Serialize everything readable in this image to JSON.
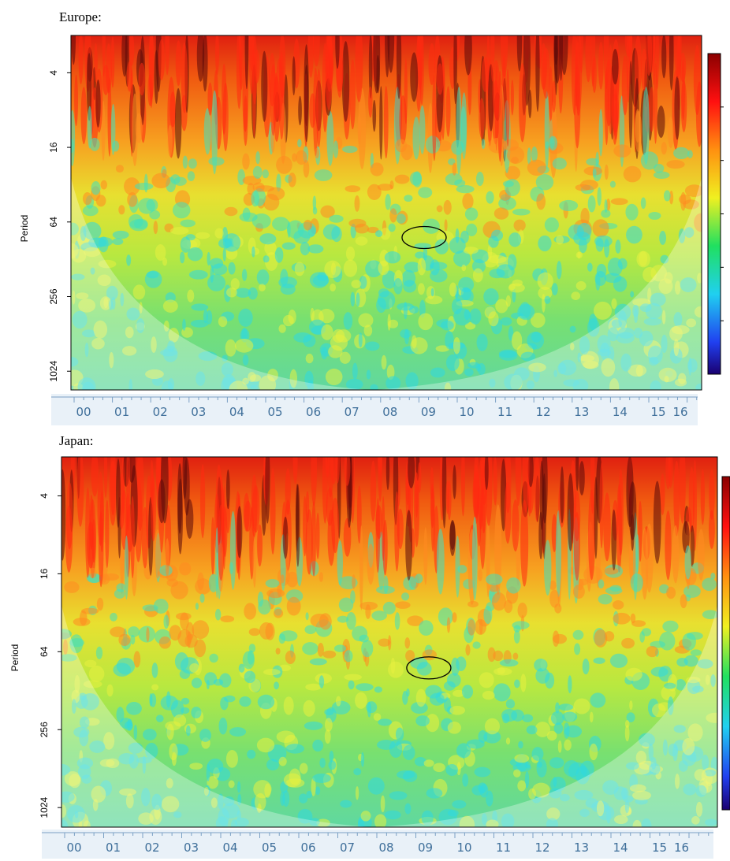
{
  "chart_data": [
    {
      "type": "wavelet",
      "title": "Europe:",
      "ylabel": "Period",
      "ylog": true,
      "ylim": [
        2,
        1450
      ],
      "yticks": [
        4,
        16,
        64,
        256,
        1024
      ],
      "categories": [
        "00",
        "01",
        "02",
        "03",
        "04",
        "05",
        "06",
        "07",
        "08",
        "09",
        "10",
        "11",
        "12",
        "13",
        "14",
        "15",
        "16"
      ]
    },
    {
      "type": "wavelet",
      "title": "Japan:",
      "ylabel": "Period",
      "ylog": true,
      "ylim": [
        2,
        1450
      ],
      "yticks": [
        4,
        16,
        64,
        256,
        1024
      ],
      "categories": [
        "00",
        "01",
        "02",
        "03",
        "04",
        "05",
        "06",
        "07",
        "08",
        "09",
        "10",
        "11",
        "12",
        "13",
        "14",
        "15",
        "16"
      ]
    }
  ]
}
